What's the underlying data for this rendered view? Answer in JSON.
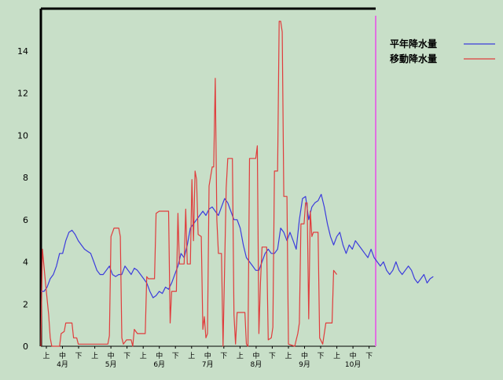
{
  "chart_data": {
    "type": "line",
    "title": "",
    "xlabel": "",
    "ylabel": "",
    "ylim": [
      0,
      16
    ],
    "yticks": [
      0,
      2,
      4,
      6,
      8,
      10,
      12,
      14
    ],
    "grid": false,
    "legend_position": "top-right",
    "x_period_labels": [
      "上",
      "中",
      "下"
    ],
    "x_month_labels": [
      "4月",
      "5月",
      "6月",
      "7月",
      "8月",
      "9月",
      "10月"
    ],
    "x_index_range": [
      0,
      215
    ],
    "colors": {
      "background": "#c8dfc8",
      "axis": "#000000",
      "marker_line": "#e070e0"
    },
    "series": [
      {
        "name": "平年降水量",
        "color": "#3c3cdc",
        "points": [
          [
            0,
            2.6
          ],
          [
            2,
            2.6
          ],
          [
            4,
            2.8
          ],
          [
            6,
            3.2
          ],
          [
            8,
            3.4
          ],
          [
            10,
            3.8
          ],
          [
            12,
            4.4
          ],
          [
            14,
            4.4
          ],
          [
            16,
            5.0
          ],
          [
            18,
            5.4
          ],
          [
            20,
            5.5
          ],
          [
            22,
            5.3
          ],
          [
            24,
            5.0
          ],
          [
            26,
            4.8
          ],
          [
            28,
            4.6
          ],
          [
            30,
            4.5
          ],
          [
            32,
            4.4
          ],
          [
            34,
            4.0
          ],
          [
            36,
            3.6
          ],
          [
            38,
            3.4
          ],
          [
            40,
            3.4
          ],
          [
            42,
            3.6
          ],
          [
            44,
            3.8
          ],
          [
            46,
            3.4
          ],
          [
            48,
            3.3
          ],
          [
            50,
            3.4
          ],
          [
            52,
            3.4
          ],
          [
            54,
            3.8
          ],
          [
            56,
            3.6
          ],
          [
            58,
            3.4
          ],
          [
            60,
            3.7
          ],
          [
            62,
            3.6
          ],
          [
            64,
            3.4
          ],
          [
            66,
            3.2
          ],
          [
            68,
            3.0
          ],
          [
            70,
            2.6
          ],
          [
            72,
            2.3
          ],
          [
            74,
            2.4
          ],
          [
            76,
            2.6
          ],
          [
            78,
            2.5
          ],
          [
            80,
            2.8
          ],
          [
            82,
            2.7
          ],
          [
            84,
            3.0
          ],
          [
            86,
            3.4
          ],
          [
            88,
            3.8
          ],
          [
            90,
            4.4
          ],
          [
            92,
            4.2
          ],
          [
            94,
            4.8
          ],
          [
            96,
            5.6
          ],
          [
            98,
            5.8
          ],
          [
            100,
            6.0
          ],
          [
            102,
            6.2
          ],
          [
            104,
            6.4
          ],
          [
            106,
            6.2
          ],
          [
            108,
            6.5
          ],
          [
            110,
            6.6
          ],
          [
            112,
            6.4
          ],
          [
            114,
            6.2
          ],
          [
            116,
            6.6
          ],
          [
            118,
            7.0
          ],
          [
            120,
            6.8
          ],
          [
            122,
            6.4
          ],
          [
            124,
            6.0
          ],
          [
            126,
            6.0
          ],
          [
            128,
            5.6
          ],
          [
            130,
            4.8
          ],
          [
            132,
            4.2
          ],
          [
            134,
            4.0
          ],
          [
            136,
            3.8
          ],
          [
            138,
            3.6
          ],
          [
            140,
            3.6
          ],
          [
            142,
            4.0
          ],
          [
            144,
            4.4
          ],
          [
            146,
            4.6
          ],
          [
            148,
            4.4
          ],
          [
            150,
            4.4
          ],
          [
            152,
            4.6
          ],
          [
            154,
            5.6
          ],
          [
            156,
            5.4
          ],
          [
            158,
            5.0
          ],
          [
            160,
            5.4
          ],
          [
            162,
            5.0
          ],
          [
            164,
            4.6
          ],
          [
            166,
            6.0
          ],
          [
            168,
            7.0
          ],
          [
            170,
            7.1
          ],
          [
            172,
            6.0
          ],
          [
            174,
            6.6
          ],
          [
            176,
            6.8
          ],
          [
            178,
            6.9
          ],
          [
            180,
            7.2
          ],
          [
            182,
            6.6
          ],
          [
            184,
            5.8
          ],
          [
            186,
            5.2
          ],
          [
            188,
            4.8
          ],
          [
            190,
            5.2
          ],
          [
            192,
            5.4
          ],
          [
            194,
            4.8
          ],
          [
            196,
            4.4
          ],
          [
            198,
            4.8
          ],
          [
            200,
            4.6
          ],
          [
            202,
            5.0
          ],
          [
            204,
            4.8
          ],
          [
            206,
            4.6
          ],
          [
            208,
            4.4
          ],
          [
            210,
            4.2
          ],
          [
            212,
            4.6
          ],
          [
            214,
            4.2
          ],
          [
            216,
            4.0
          ],
          [
            218,
            3.8
          ],
          [
            220,
            4.0
          ],
          [
            222,
            3.6
          ],
          [
            224,
            3.4
          ],
          [
            226,
            3.6
          ],
          [
            228,
            4.0
          ],
          [
            230,
            3.6
          ],
          [
            232,
            3.4
          ],
          [
            234,
            3.6
          ],
          [
            236,
            3.8
          ],
          [
            238,
            3.6
          ],
          [
            240,
            3.2
          ],
          [
            242,
            3.0
          ],
          [
            244,
            3.2
          ],
          [
            246,
            3.4
          ],
          [
            248,
            3.0
          ],
          [
            250,
            3.2
          ],
          [
            252,
            3.3
          ]
        ]
      },
      {
        "name": "移動降水量",
        "color": "#e03c3c",
        "points": [
          [
            0,
            0.0
          ],
          [
            1,
            4.6
          ],
          [
            3,
            3.0
          ],
          [
            5,
            1.5
          ],
          [
            6,
            0.4
          ],
          [
            7,
            0.0
          ],
          [
            12,
            0.0
          ],
          [
            13,
            0.6
          ],
          [
            15,
            0.7
          ],
          [
            16,
            1.1
          ],
          [
            20,
            1.1
          ],
          [
            21,
            0.4
          ],
          [
            23,
            0.4
          ],
          [
            24,
            0.1
          ],
          [
            43,
            0.1
          ],
          [
            44,
            0.5
          ],
          [
            45,
            5.2
          ],
          [
            47,
            5.6
          ],
          [
            50,
            5.6
          ],
          [
            51,
            5.2
          ],
          [
            52,
            0.4
          ],
          [
            53,
            0.1
          ],
          [
            55,
            0.3
          ],
          [
            58,
            0.3
          ],
          [
            59,
            0.0
          ],
          [
            60,
            0.8
          ],
          [
            62,
            0.6
          ],
          [
            67,
            0.6
          ],
          [
            68,
            3.3
          ],
          [
            69,
            3.2
          ],
          [
            73,
            3.2
          ],
          [
            74,
            6.3
          ],
          [
            76,
            6.4
          ],
          [
            82,
            6.4
          ],
          [
            83,
            1.1
          ],
          [
            84,
            2.6
          ],
          [
            87,
            2.6
          ],
          [
            88,
            6.3
          ],
          [
            89,
            3.9
          ],
          [
            92,
            3.9
          ],
          [
            93,
            6.5
          ],
          [
            94,
            3.9
          ],
          [
            96,
            3.9
          ],
          [
            97,
            7.9
          ],
          [
            98,
            5.0
          ],
          [
            99,
            8.3
          ],
          [
            100,
            7.9
          ],
          [
            101,
            5.3
          ],
          [
            103,
            5.2
          ],
          [
            104,
            0.8
          ],
          [
            105,
            1.4
          ],
          [
            106,
            0.4
          ],
          [
            107,
            0.6
          ],
          [
            108,
            7.6
          ],
          [
            110,
            8.5
          ],
          [
            111,
            8.5
          ],
          [
            112,
            12.7
          ],
          [
            113,
            6.0
          ],
          [
            114,
            4.4
          ],
          [
            116,
            4.4
          ],
          [
            117,
            0.0
          ],
          [
            119,
            7.5
          ],
          [
            120,
            8.9
          ],
          [
            123,
            8.9
          ],
          [
            124,
            1.5
          ],
          [
            125,
            0.1
          ],
          [
            126,
            1.6
          ],
          [
            131,
            1.6
          ],
          [
            132,
            0.1
          ],
          [
            133,
            0.0
          ],
          [
            134,
            8.9
          ],
          [
            138,
            8.9
          ],
          [
            139,
            9.5
          ],
          [
            140,
            0.6
          ],
          [
            141,
            3.0
          ],
          [
            142,
            4.7
          ],
          [
            145,
            4.7
          ],
          [
            146,
            0.3
          ],
          [
            148,
            0.4
          ],
          [
            149,
            0.9
          ],
          [
            150,
            8.3
          ],
          [
            152,
            8.3
          ],
          [
            153,
            15.4
          ],
          [
            154,
            15.4
          ],
          [
            155,
            14.9
          ],
          [
            156,
            7.1
          ],
          [
            158,
            7.1
          ],
          [
            159,
            0.1
          ],
          [
            163,
            0.0
          ],
          [
            164,
            0.3
          ],
          [
            165,
            0.6
          ],
          [
            166,
            1.1
          ],
          [
            167,
            5.8
          ],
          [
            169,
            5.8
          ],
          [
            170,
            6.8
          ],
          [
            171,
            6.8
          ],
          [
            172,
            1.3
          ],
          [
            173,
            6.4
          ],
          [
            174,
            5.2
          ],
          [
            175,
            5.4
          ],
          [
            178,
            5.4
          ],
          [
            179,
            0.4
          ],
          [
            181,
            0.1
          ],
          [
            183,
            1.1
          ],
          [
            187,
            1.1
          ],
          [
            188,
            3.6
          ],
          [
            190,
            3.4
          ]
        ]
      }
    ]
  }
}
